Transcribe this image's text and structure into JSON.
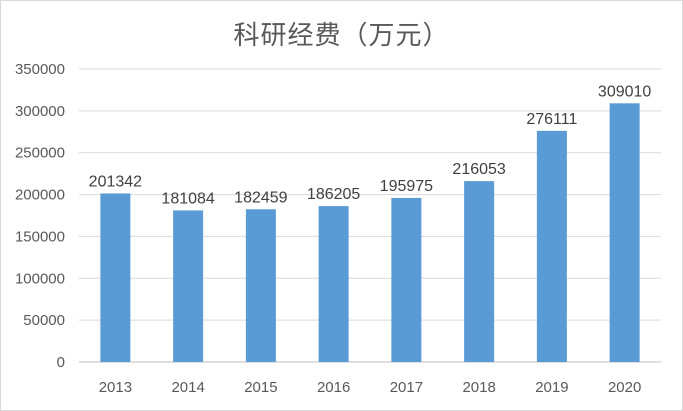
{
  "chart_data": {
    "type": "bar",
    "title": "科研经费（万元）",
    "xlabel": "",
    "ylabel": "",
    "categories": [
      "2013",
      "2014",
      "2015",
      "2016",
      "2017",
      "2018",
      "2019",
      "2020"
    ],
    "values": [
      201342,
      181084,
      182459,
      186205,
      195975,
      216053,
      276111,
      309010
    ],
    "ylim": [
      0,
      350000
    ],
    "yticks": [
      0,
      50000,
      100000,
      150000,
      200000,
      250000,
      300000,
      350000
    ],
    "grid": true,
    "legend": "none",
    "colors": {
      "bar": "#5b9bd5",
      "grid": "#d9d9d9",
      "axis": "#bfbfbf"
    }
  }
}
